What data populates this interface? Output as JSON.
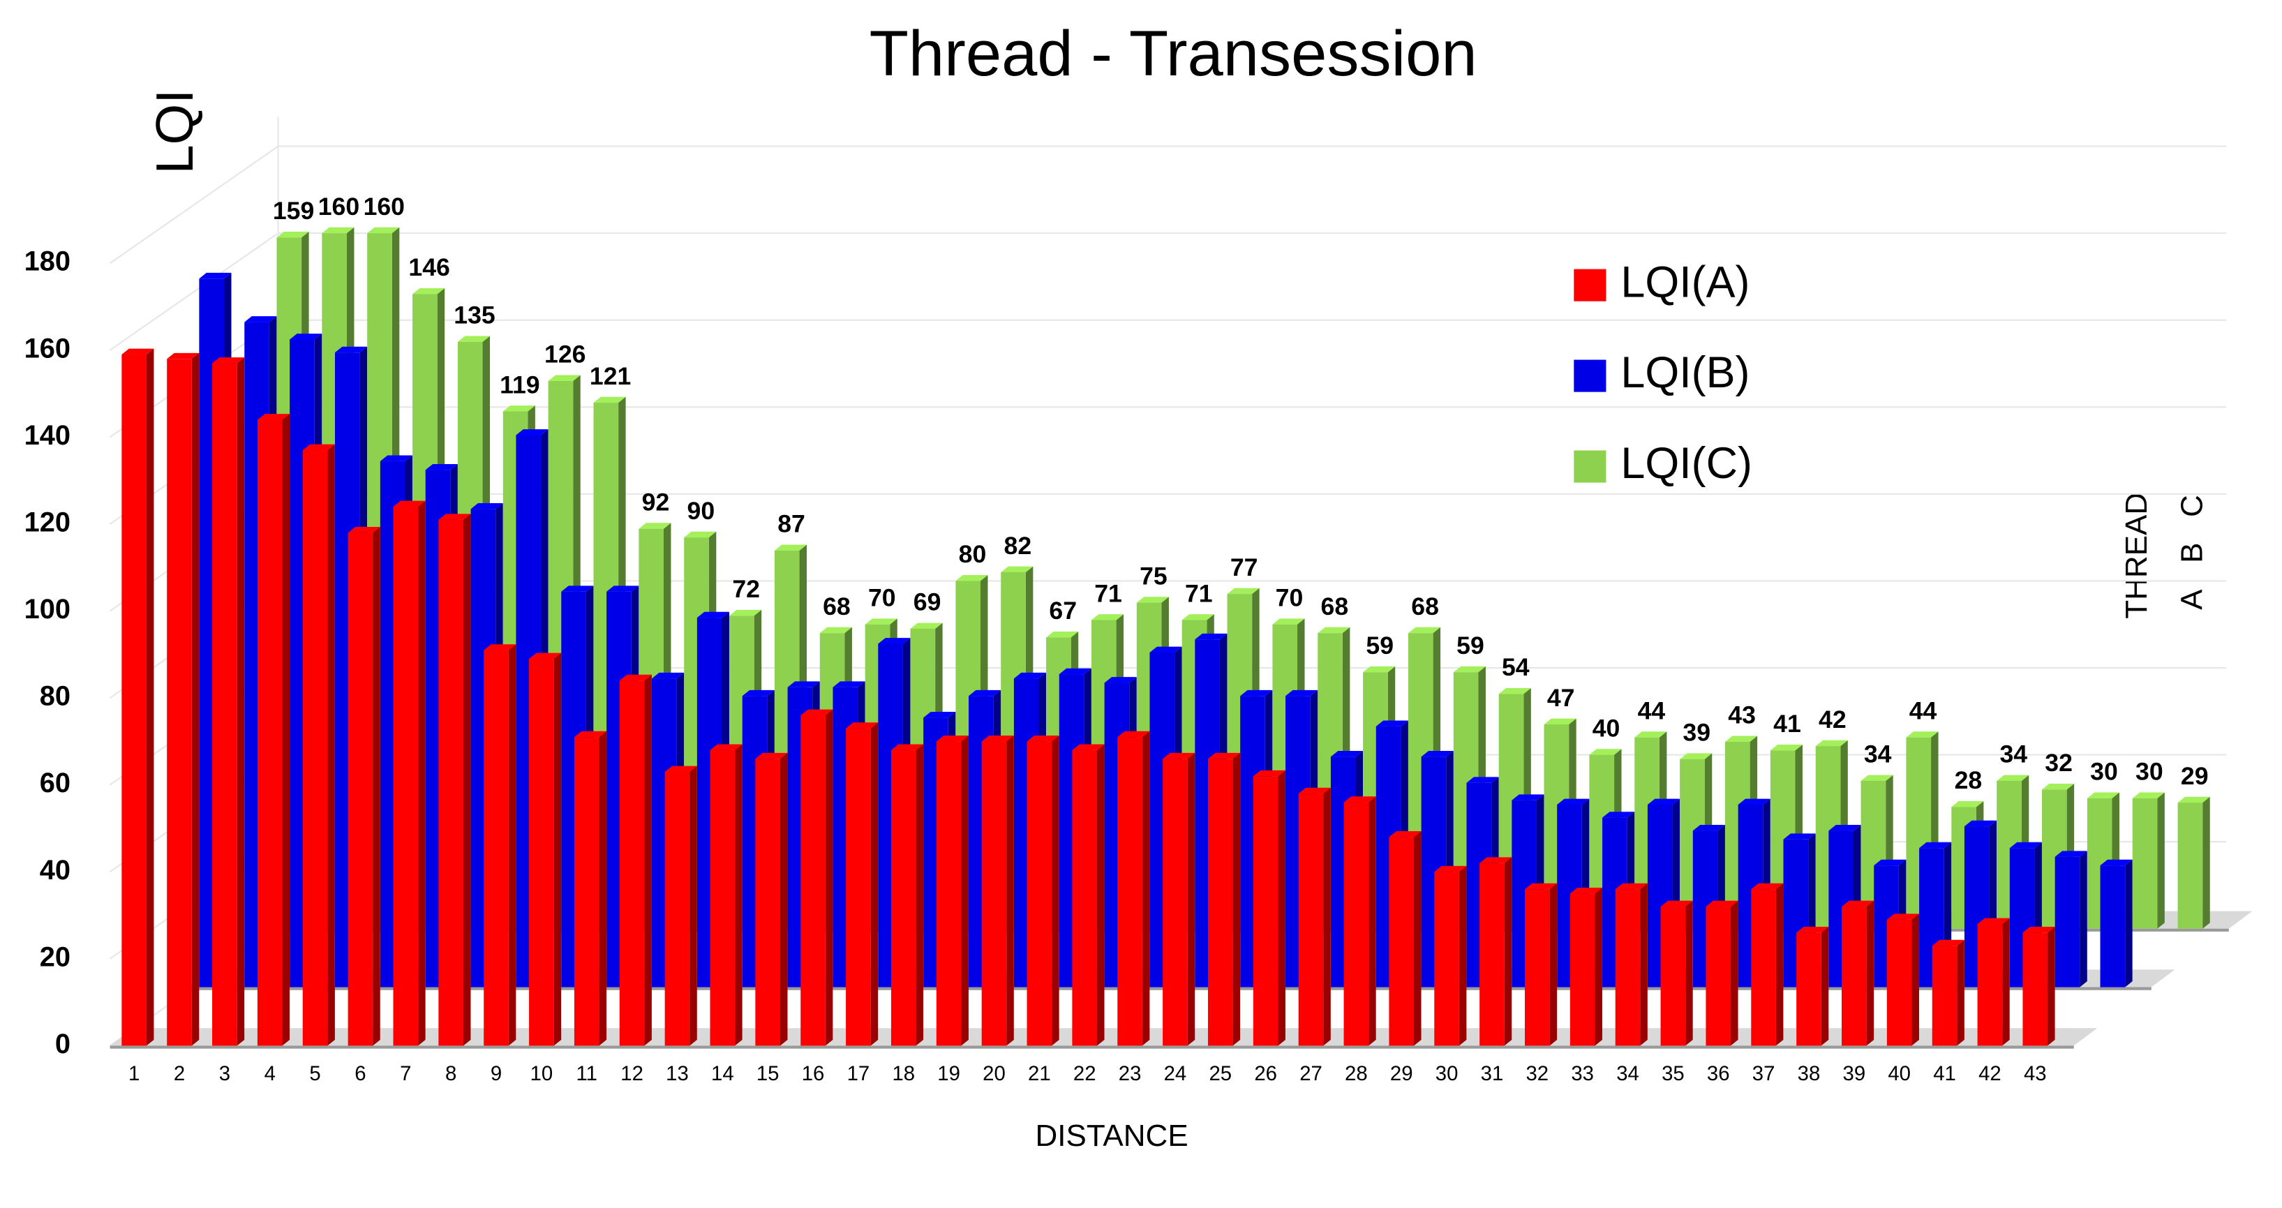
{
  "chart_data": {
    "type": "bar3d",
    "title": "Thread - Transession",
    "y_label": "LQI",
    "x_label": "DISTANCE",
    "depth_label": "THREAD",
    "depth_categories": [
      "A",
      "B",
      "C"
    ],
    "categories": [
      "1",
      "2",
      "3",
      "4",
      "5",
      "6",
      "7",
      "8",
      "9",
      "10",
      "11",
      "12",
      "13",
      "14",
      "15",
      "16",
      "17",
      "18",
      "19",
      "20",
      "21",
      "22",
      "23",
      "24",
      "25",
      "26",
      "27",
      "28",
      "29",
      "30",
      "31",
      "32",
      "33",
      "34",
      "35",
      "36",
      "37",
      "38",
      "39",
      "40",
      "41",
      "42",
      "43"
    ],
    "series": [
      {
        "name": "LQI(A)",
        "color": "#ff0000",
        "values": [
          159,
          158,
          157,
          144,
          137,
          118,
          124,
          121,
          91,
          89,
          71,
          84,
          63,
          68,
          66,
          76,
          73,
          68,
          70,
          70,
          70,
          68,
          71,
          66,
          66,
          62,
          58,
          56,
          48,
          40,
          42,
          36,
          35,
          36,
          32,
          32,
          36,
          26,
          32,
          29,
          23,
          28,
          26
        ]
      },
      {
        "name": "LQI(B)",
        "color": "#0000e6",
        "values": [
          163,
          153,
          149,
          146,
          121,
          119,
          110,
          127,
          91,
          91,
          71,
          85,
          67,
          69,
          69,
          79,
          62,
          67,
          71,
          72,
          70,
          77,
          80,
          67,
          67,
          53,
          60,
          53,
          47,
          43,
          42,
          39,
          42,
          36,
          42,
          34,
          36,
          28,
          32,
          37,
          32,
          30,
          28
        ]
      },
      {
        "name": "LQI(C)",
        "color": "#8ed14f",
        "show_labels": true,
        "values": [
          159,
          160,
          160,
          146,
          135,
          119,
          126,
          121,
          92,
          90,
          72,
          87,
          68,
          70,
          69,
          80,
          82,
          67,
          71,
          75,
          71,
          77,
          70,
          68,
          59,
          68,
          59,
          54,
          47,
          40,
          44,
          39,
          43,
          41,
          42,
          34,
          44,
          28,
          34,
          32,
          30,
          30,
          29
        ]
      }
    ],
    "ylim": [
      0,
      180
    ],
    "yticks": [
      0,
      20,
      40,
      60,
      80,
      100,
      120,
      140,
      160,
      180
    ],
    "grid": true
  }
}
